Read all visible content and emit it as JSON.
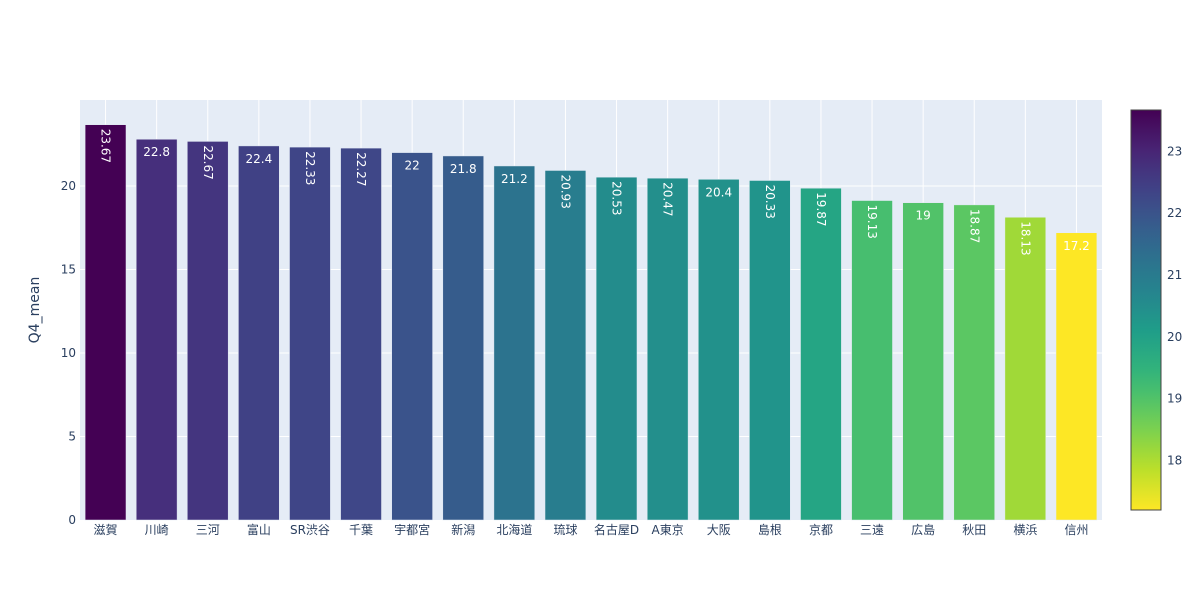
{
  "chart_data": {
    "type": "bar",
    "title": "",
    "xlabel": "",
    "ylabel": "Q4_mean",
    "ylim": [
      0,
      25
    ],
    "yticks": [
      0,
      5,
      10,
      15,
      20
    ],
    "grid": true,
    "categories": [
      "滋賀",
      "川崎",
      "三河",
      "富山",
      "SR渋谷",
      "千葉",
      "宇都宮",
      "新潟",
      "北海道",
      "琉球",
      "名古屋D",
      "A東京",
      "大阪",
      "島根",
      "京都",
      "三遠",
      "広島",
      "秋田",
      "横浜",
      "信州"
    ],
    "values": [
      23.67,
      22.8,
      22.67,
      22.4,
      22.33,
      22.27,
      22,
      21.8,
      21.2,
      20.93,
      20.53,
      20.47,
      20.4,
      20.33,
      19.87,
      19.13,
      19,
      18.87,
      18.13,
      17.2
    ],
    "value_labels": [
      "23.67",
      "22.8",
      "22.67",
      "22.4",
      "22.33",
      "22.27",
      "22",
      "21.8",
      "21.2",
      "20.93",
      "20.53",
      "20.47",
      "20.4",
      "20.33",
      "19.87",
      "19.13",
      "19",
      "18.87",
      "18.13",
      "17.2"
    ],
    "colorscale": "Viridis (reversed)",
    "colorbar": {
      "range": [
        17.2,
        23.67
      ],
      "ticks": [
        18,
        19,
        20,
        21,
        22,
        23
      ]
    },
    "colors": {
      "plot_bg": "#e5ecf6",
      "grid": "#ffffff",
      "text": "#2a3f5f"
    }
  }
}
